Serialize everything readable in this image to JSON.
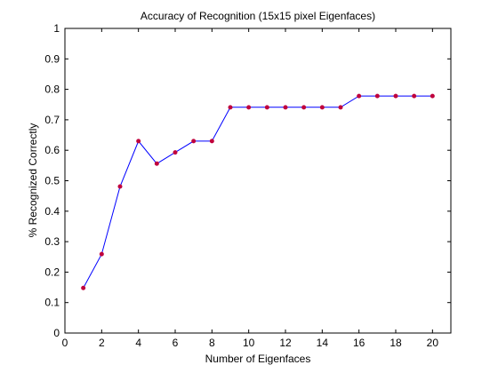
{
  "chart_data": {
    "type": "line",
    "title": "Accuracy of Recognition (15x15 pixel Eigenfaces)",
    "xlabel": "Number of Eigenfaces",
    "ylabel": "% Recognized Correctly",
    "xlim": [
      0,
      21
    ],
    "ylim": [
      0,
      1
    ],
    "xticks": [
      0,
      2,
      4,
      6,
      8,
      10,
      12,
      14,
      16,
      18,
      20
    ],
    "yticks": [
      0,
      0.1,
      0.2,
      0.3,
      0.4,
      0.5,
      0.6,
      0.7,
      0.8,
      0.9,
      1
    ],
    "xtick_labels": [
      "0",
      "2",
      "4",
      "6",
      "8",
      "10",
      "12",
      "14",
      "16",
      "18",
      "20"
    ],
    "ytick_labels": [
      "0",
      "0.1",
      "0.2",
      "0.3",
      "0.4",
      "0.5",
      "0.6",
      "0.7",
      "0.8",
      "0.9",
      "1"
    ],
    "grid": false,
    "line_color": "#0000ff",
    "marker_color": "#c0003c",
    "series": [
      {
        "x": [
          1,
          2,
          3,
          4,
          5,
          6,
          7,
          8,
          9,
          10,
          11,
          12,
          13,
          14,
          15,
          16,
          17,
          18,
          19,
          20
        ],
        "y": [
          0.148,
          0.259,
          0.481,
          0.63,
          0.556,
          0.593,
          0.63,
          0.63,
          0.741,
          0.741,
          0.741,
          0.741,
          0.741,
          0.741,
          0.741,
          0.778,
          0.778,
          0.778,
          0.778,
          0.778
        ]
      }
    ]
  }
}
